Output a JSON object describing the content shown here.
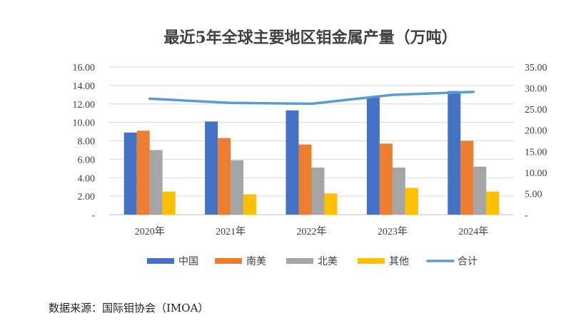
{
  "chart_data": {
    "type": "bar",
    "title": "最近5年全球主要地区钼金属产量（万吨）",
    "categories": [
      "2020年",
      "2021年",
      "2022年",
      "2023年",
      "2024年"
    ],
    "series": [
      {
        "name": "中国",
        "type": "bar",
        "axis": "left",
        "color": "#4472C4",
        "values": [
          8.9,
          10.1,
          11.3,
          12.7,
          13.4
        ]
      },
      {
        "name": "南美",
        "type": "bar",
        "axis": "left",
        "color": "#ED7D31",
        "values": [
          9.1,
          8.3,
          7.6,
          7.7,
          8.0
        ]
      },
      {
        "name": "北美",
        "type": "bar",
        "axis": "left",
        "color": "#A5A5A5",
        "values": [
          7.0,
          5.9,
          5.1,
          5.1,
          5.2
        ]
      },
      {
        "name": "其他",
        "type": "bar",
        "axis": "left",
        "color": "#FFC000",
        "values": [
          2.5,
          2.2,
          2.3,
          2.9,
          2.5
        ]
      },
      {
        "name": "合计",
        "type": "line",
        "axis": "right",
        "color": "#5B9BD5",
        "values": [
          27.5,
          26.5,
          26.3,
          28.4,
          29.1
        ]
      }
    ],
    "y_left": {
      "min": 0,
      "max": 16,
      "step": 2,
      "tick_labels": [
        "-",
        "2.00",
        "4.00",
        "6.00",
        "8.00",
        "10.00",
        "12.00",
        "14.00",
        "16.00"
      ]
    },
    "y_right": {
      "min": 0,
      "max": 35,
      "step": 5,
      "tick_labels": [
        "-",
        "5.00",
        "10.00",
        "15.00",
        "20.00",
        "25.00",
        "30.00",
        "35.00"
      ]
    },
    "grid": true,
    "legend": "bottom"
  },
  "footer": {
    "source": "数据来源：国际钼协会（IMOA）"
  }
}
